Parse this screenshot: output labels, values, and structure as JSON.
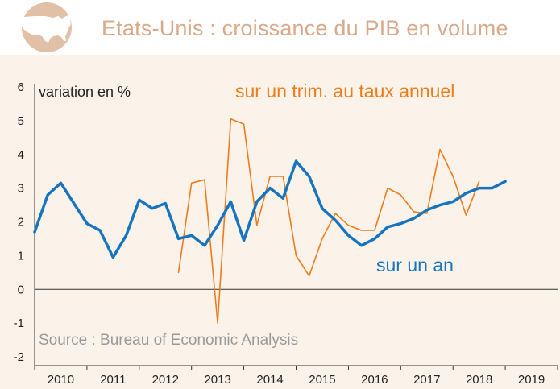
{
  "header": {
    "title": "Etats-Unis : croissance du PIB en volume",
    "icon": "usa-map-icon"
  },
  "colors": {
    "title": "#d9a989",
    "annual": "#1775bf",
    "quarterly": "#ee7c1a",
    "background": "#fbf3ea"
  },
  "chart_data": {
    "type": "line",
    "title": "Etats-Unis : croissance du PIB en volume",
    "ylabel": "variation en %",
    "ylim": [
      -2,
      6
    ],
    "yticks": [
      -2,
      -1,
      0,
      1,
      2,
      3,
      4,
      5,
      6
    ],
    "xlabels": [
      "2010",
      "2011",
      "2012",
      "2013",
      "2014",
      "2015",
      "2016",
      "2017",
      "2018",
      "2019"
    ],
    "grid": false,
    "source": "Source : Bureau of Economic Analysis",
    "series": [
      {
        "name": "sur un an",
        "x_start": 2010.0,
        "values": [
          1.7,
          2.8,
          3.15,
          2.55,
          1.95,
          1.75,
          0.95,
          1.6,
          2.65,
          2.4,
          2.55,
          1.5,
          1.6,
          1.3,
          1.9,
          2.6,
          1.45,
          2.6,
          3.0,
          2.7,
          3.8,
          3.35,
          2.4,
          2.05,
          1.6,
          1.3,
          1.5,
          1.85,
          1.95,
          2.1,
          2.35,
          2.5,
          2.6,
          2.85,
          3.0,
          3.0,
          3.2
        ]
      },
      {
        "name": "sur un trim. au taux annuel",
        "x_start": 2012.75,
        "values": [
          0.5,
          3.15,
          3.25,
          -1.0,
          5.05,
          4.9,
          1.9,
          3.35,
          3.35,
          1.0,
          0.4,
          1.5,
          2.25,
          1.9,
          1.75,
          1.75,
          3.0,
          2.8,
          2.3,
          2.25,
          4.15,
          3.35,
          2.2,
          3.2
        ]
      }
    ]
  }
}
